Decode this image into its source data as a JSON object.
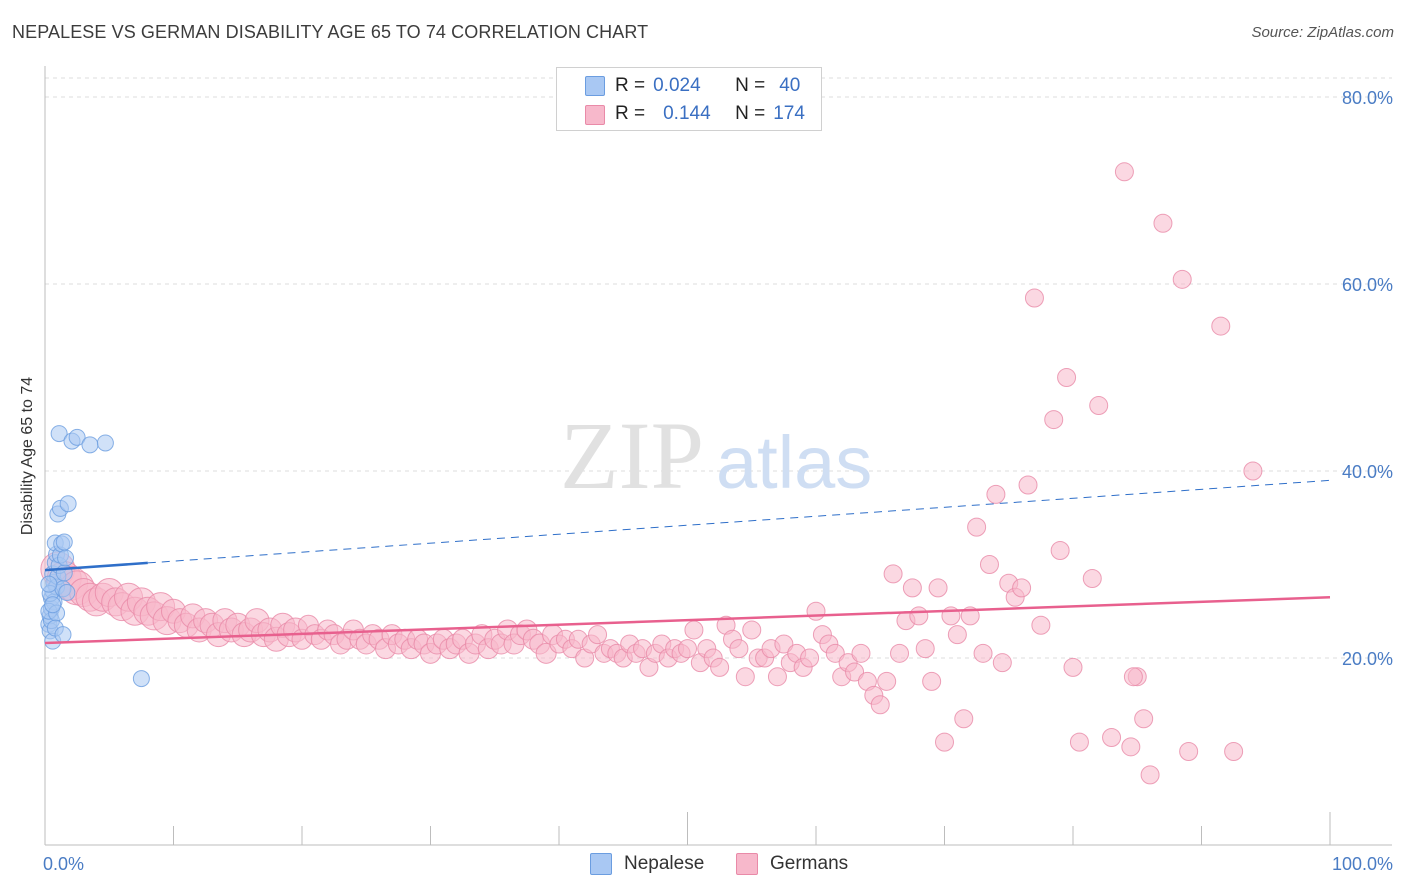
{
  "header": {
    "title": "NEPALESE VS GERMAN DISABILITY AGE 65 TO 74 CORRELATION CHART",
    "source": "Source: ZipAtlas.com"
  },
  "watermark": {
    "zip": "ZIP",
    "atlas": "atlas"
  },
  "stats": {
    "nepalese": {
      "r_label": "R =",
      "r_value": "0.024",
      "n_label": "N =",
      "n_value": "40"
    },
    "germans": {
      "r_label": "R =",
      "r_value": "0.144",
      "n_label": "N =",
      "n_value": "174"
    }
  },
  "legend": {
    "nepalese": "Nepalese",
    "germans": "Germans"
  },
  "colors": {
    "nepalese_fill": "#a9c8f3",
    "nepalese_stroke": "#6b9de0",
    "nepalese_line": "#2f6fc9",
    "germans_fill": "#f7b8cb",
    "germans_stroke": "#e98aa8",
    "germans_line": "#e8608e",
    "axis_label": "#4a7cc4",
    "grid": "#dcdcdc"
  },
  "chart_data": {
    "type": "scatter",
    "title": "NEPALESE VS GERMAN DISABILITY AGE 65 TO 74 CORRELATION CHART",
    "xlabel": "",
    "ylabel": "Disability Age 65 to 74",
    "xlim": [
      0,
      100
    ],
    "ylim": [
      0,
      80
    ],
    "x_tick_labels": [
      "0.0%",
      "100.0%"
    ],
    "y_ticks": [
      20,
      40,
      60,
      80
    ],
    "y_tick_labels": [
      "20.0%",
      "40.0%",
      "60.0%",
      "80.0%"
    ],
    "series": [
      {
        "name": "Nepalese",
        "r": 0.024,
        "n": 40,
        "trend": {
          "x0": 0,
          "y0": 29.4,
          "x1": 100,
          "y1": 39.0,
          "solid_until_x": 8
        },
        "points": [
          [
            0.3,
            23.6
          ],
          [
            0.4,
            24.5
          ],
          [
            0.5,
            25.3
          ],
          [
            0.5,
            26.4
          ],
          [
            0.6,
            27.2
          ],
          [
            0.7,
            28.1
          ],
          [
            0.6,
            29.0
          ],
          [
            0.8,
            30.2
          ],
          [
            0.9,
            31.1
          ],
          [
            0.8,
            32.3
          ],
          [
            0.4,
            22.9
          ],
          [
            0.6,
            21.8
          ],
          [
            0.5,
            24.0
          ],
          [
            0.7,
            26.0
          ],
          [
            0.9,
            27.6
          ],
          [
            1.0,
            28.7
          ],
          [
            1.1,
            29.9
          ],
          [
            1.2,
            31.0
          ],
          [
            1.3,
            32.2
          ],
          [
            0.3,
            25.0
          ],
          [
            0.4,
            26.9
          ],
          [
            0.9,
            24.8
          ],
          [
            1.4,
            27.4
          ],
          [
            1.5,
            29.1
          ],
          [
            1.6,
            30.7
          ],
          [
            1.7,
            27.0
          ],
          [
            1.0,
            35.4
          ],
          [
            1.2,
            36.0
          ],
          [
            1.8,
            36.5
          ],
          [
            1.1,
            44.0
          ],
          [
            2.1,
            43.2
          ],
          [
            2.5,
            43.6
          ],
          [
            3.5,
            42.8
          ],
          [
            4.7,
            43.0
          ],
          [
            1.5,
            32.4
          ],
          [
            0.8,
            23.2
          ],
          [
            0.6,
            25.7
          ],
          [
            7.5,
            17.8
          ],
          [
            1.4,
            22.5
          ],
          [
            0.3,
            27.9
          ]
        ]
      },
      {
        "name": "Germans",
        "r": 0.144,
        "n": 174,
        "trend": {
          "x0": 0,
          "y0": 21.6,
          "x1": 100,
          "y1": 26.5
        },
        "points": [
          [
            1.0,
            29.5
          ],
          [
            1.5,
            28.5
          ],
          [
            2.0,
            28.0
          ],
          [
            2.5,
            27.5
          ],
          [
            3.0,
            27.0
          ],
          [
            3.5,
            26.5
          ],
          [
            4.0,
            26.0
          ],
          [
            4.5,
            26.5
          ],
          [
            5.0,
            27.0
          ],
          [
            5.5,
            26.0
          ],
          [
            6.0,
            25.5
          ],
          [
            6.5,
            26.5
          ],
          [
            7.0,
            25.0
          ],
          [
            7.5,
            26.0
          ],
          [
            8.0,
            25.0
          ],
          [
            8.5,
            24.5
          ],
          [
            9.0,
            25.5
          ],
          [
            9.5,
            24.0
          ],
          [
            10.0,
            25.0
          ],
          [
            10.5,
            24.0
          ],
          [
            11.0,
            23.5
          ],
          [
            11.5,
            24.5
          ],
          [
            12.0,
            23.0
          ],
          [
            12.5,
            24.0
          ],
          [
            13.0,
            23.5
          ],
          [
            13.5,
            22.5
          ],
          [
            14.0,
            24.0
          ],
          [
            14.5,
            23.0
          ],
          [
            15.0,
            23.5
          ],
          [
            15.5,
            22.5
          ],
          [
            16.0,
            23.0
          ],
          [
            16.5,
            24.0
          ],
          [
            17.0,
            22.5
          ],
          [
            17.5,
            23.0
          ],
          [
            18.0,
            22.0
          ],
          [
            18.5,
            23.5
          ],
          [
            19.0,
            22.5
          ],
          [
            19.5,
            23.0
          ],
          [
            20.0,
            22.0
          ],
          [
            20.5,
            23.5
          ],
          [
            21.0,
            22.5
          ],
          [
            21.5,
            22.0
          ],
          [
            22.0,
            23.0
          ],
          [
            22.5,
            22.5
          ],
          [
            23.0,
            21.5
          ],
          [
            23.5,
            22.0
          ],
          [
            24.0,
            23.0
          ],
          [
            24.5,
            22.0
          ],
          [
            25.0,
            21.5
          ],
          [
            25.5,
            22.5
          ],
          [
            26.0,
            22.0
          ],
          [
            26.5,
            21.0
          ],
          [
            27.0,
            22.5
          ],
          [
            27.5,
            21.5
          ],
          [
            28.0,
            22.0
          ],
          [
            28.5,
            21.0
          ],
          [
            29.0,
            22.0
          ],
          [
            29.5,
            21.5
          ],
          [
            30.0,
            20.5
          ],
          [
            30.5,
            21.5
          ],
          [
            31.0,
            22.0
          ],
          [
            31.5,
            21.0
          ],
          [
            32.0,
            21.5
          ],
          [
            32.5,
            22.0
          ],
          [
            33.0,
            20.5
          ],
          [
            33.5,
            21.5
          ],
          [
            34.0,
            22.5
          ],
          [
            34.5,
            21.0
          ],
          [
            35.0,
            22.0
          ],
          [
            35.5,
            21.5
          ],
          [
            36.0,
            23.0
          ],
          [
            36.5,
            21.5
          ],
          [
            37.0,
            22.5
          ],
          [
            37.5,
            23.0
          ],
          [
            38.0,
            22.0
          ],
          [
            38.5,
            21.5
          ],
          [
            39.0,
            20.5
          ],
          [
            39.5,
            22.5
          ],
          [
            40.0,
            21.5
          ],
          [
            40.5,
            22.0
          ],
          [
            41.0,
            21.0
          ],
          [
            41.5,
            22.0
          ],
          [
            42.0,
            20.0
          ],
          [
            42.5,
            21.5
          ],
          [
            43.0,
            22.5
          ],
          [
            43.5,
            20.5
          ],
          [
            44.0,
            21.0
          ],
          [
            44.5,
            20.5
          ],
          [
            45.0,
            20.0
          ],
          [
            45.5,
            21.5
          ],
          [
            46.0,
            20.5
          ],
          [
            46.5,
            21.0
          ],
          [
            47.0,
            19.0
          ],
          [
            47.5,
            20.5
          ],
          [
            48.0,
            21.5
          ],
          [
            48.5,
            20.0
          ],
          [
            49.0,
            21.0
          ],
          [
            49.5,
            20.5
          ],
          [
            50.0,
            21.0
          ],
          [
            50.5,
            23.0
          ],
          [
            51.0,
            19.5
          ],
          [
            51.5,
            21.0
          ],
          [
            52.0,
            20.0
          ],
          [
            52.5,
            19.0
          ],
          [
            53.0,
            23.5
          ],
          [
            53.5,
            22.0
          ],
          [
            54.0,
            21.0
          ],
          [
            54.5,
            18.0
          ],
          [
            55.0,
            23.0
          ],
          [
            55.5,
            20.0
          ],
          [
            56.0,
            20.0
          ],
          [
            56.5,
            21.0
          ],
          [
            57.0,
            18.0
          ],
          [
            57.5,
            21.5
          ],
          [
            58.0,
            19.5
          ],
          [
            58.5,
            20.5
          ],
          [
            59.0,
            19.0
          ],
          [
            59.5,
            20.0
          ],
          [
            60.0,
            25.0
          ],
          [
            60.5,
            22.5
          ],
          [
            61.0,
            21.5
          ],
          [
            61.5,
            20.5
          ],
          [
            62.0,
            18.0
          ],
          [
            62.5,
            19.5
          ],
          [
            63.0,
            18.5
          ],
          [
            63.5,
            20.5
          ],
          [
            64.0,
            17.5
          ],
          [
            64.5,
            16.0
          ],
          [
            65.0,
            15.0
          ],
          [
            65.5,
            17.5
          ],
          [
            66.0,
            29.0
          ],
          [
            66.5,
            20.5
          ],
          [
            67.0,
            24.0
          ],
          [
            67.5,
            27.5
          ],
          [
            68.0,
            24.5
          ],
          [
            68.5,
            21.0
          ],
          [
            69.0,
            17.5
          ],
          [
            69.5,
            27.5
          ],
          [
            70.0,
            11.0
          ],
          [
            70.5,
            24.5
          ],
          [
            71.0,
            22.5
          ],
          [
            71.5,
            13.5
          ],
          [
            72.0,
            24.5
          ],
          [
            72.5,
            34.0
          ],
          [
            73.0,
            20.5
          ],
          [
            73.5,
            30.0
          ],
          [
            74.0,
            37.5
          ],
          [
            74.5,
            19.5
          ],
          [
            75.0,
            28.0
          ],
          [
            75.5,
            26.5
          ],
          [
            76.0,
            27.5
          ],
          [
            76.5,
            38.5
          ],
          [
            77.0,
            58.5
          ],
          [
            77.5,
            23.5
          ],
          [
            78.5,
            45.5
          ],
          [
            79.0,
            31.5
          ],
          [
            79.5,
            50.0
          ],
          [
            80.0,
            19.0
          ],
          [
            80.5,
            11.0
          ],
          [
            81.5,
            28.5
          ],
          [
            82.0,
            47.0
          ],
          [
            83.0,
            11.5
          ],
          [
            84.0,
            72.0
          ],
          [
            84.5,
            10.5
          ],
          [
            85.0,
            18.0
          ],
          [
            85.5,
            13.5
          ],
          [
            86.0,
            7.5
          ],
          [
            87.0,
            66.5
          ],
          [
            88.5,
            60.5
          ],
          [
            89.0,
            10.0
          ],
          [
            91.5,
            55.5
          ],
          [
            92.5,
            10.0
          ],
          [
            94.0,
            40.0
          ],
          [
            84.7,
            18.0
          ]
        ]
      }
    ]
  }
}
